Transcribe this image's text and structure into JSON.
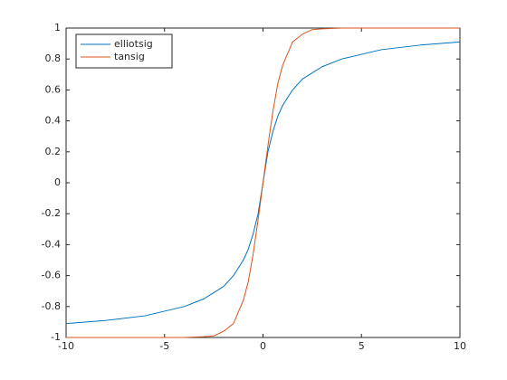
{
  "chart_data": {
    "type": "line",
    "x": [
      -10,
      -8,
      -6,
      -5,
      -4,
      -3,
      -2.5,
      -2,
      -1.5,
      -1,
      -0.75,
      -0.5,
      -0.25,
      0,
      0.25,
      0.5,
      0.75,
      1,
      1.5,
      2,
      2.5,
      3,
      4,
      5,
      6,
      8,
      10
    ],
    "series": [
      {
        "name": "elliotsig",
        "color": "#0072bd",
        "values": [
          -0.91,
          -0.89,
          -0.86,
          -0.83,
          -0.8,
          -0.75,
          -0.71,
          -0.67,
          -0.6,
          -0.5,
          -0.43,
          -0.33,
          -0.2,
          0,
          0.2,
          0.33,
          0.43,
          0.5,
          0.6,
          0.67,
          0.71,
          0.75,
          0.8,
          0.83,
          0.86,
          0.89,
          0.91
        ]
      },
      {
        "name": "tansig",
        "color": "#d95319",
        "values": [
          -1,
          -1,
          -1,
          -1,
          -1,
          -0.995,
          -0.99,
          -0.96,
          -0.91,
          -0.76,
          -0.64,
          -0.46,
          -0.24,
          0,
          0.24,
          0.46,
          0.64,
          0.76,
          0.91,
          0.96,
          0.99,
          0.995,
          1,
          1,
          1,
          1,
          1
        ]
      }
    ],
    "xlim": [
      -10,
      10
    ],
    "xticks": [
      -10,
      -5,
      0,
      5,
      10
    ],
    "ylim": [
      -1,
      1
    ],
    "yticks": [
      -1,
      -0.8,
      -0.6,
      -0.4,
      -0.2,
      0,
      0.2,
      0.4,
      0.6,
      0.8,
      1
    ],
    "legend": "northwest"
  }
}
